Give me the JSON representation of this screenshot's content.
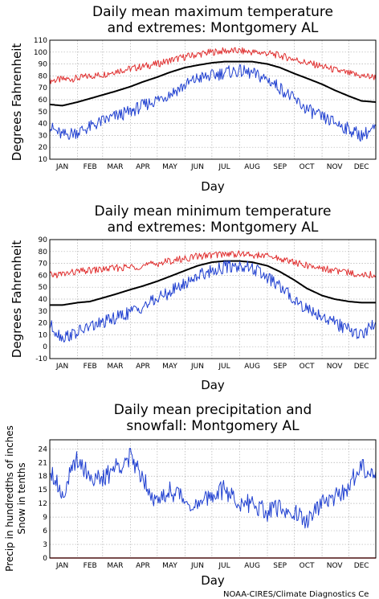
{
  "credit": "NOAA-CIRES/Climate Diagnostics Ce",
  "colors": {
    "extreme_high": "#e03030",
    "mean": "#000000",
    "extreme_low": "#2040d0",
    "precip": "#2040d0",
    "snow": "#e03030"
  },
  "chart_data": [
    {
      "type": "line",
      "title_lines": [
        "Daily mean maximum temperature",
        "and extremes: Montgomery AL"
      ],
      "xlabel": "Day",
      "ylabel": "Degrees Fahrenheit",
      "ylim": [
        10,
        110
      ],
      "yticks": [
        10,
        20,
        30,
        40,
        50,
        60,
        70,
        80,
        90,
        100,
        110
      ],
      "x_ticks": [
        "JAN",
        "FEB",
        "MAR",
        "APR",
        "MAY",
        "JUN",
        "JUL",
        "AUG",
        "SEP",
        "OCT",
        "NOV",
        "DEC"
      ],
      "grid": true,
      "legend": "none",
      "x": [
        "Jan 1",
        "Jan 15",
        "Feb 1",
        "Feb 15",
        "Mar 1",
        "Mar 15",
        "Apr 1",
        "Apr 15",
        "May 1",
        "May 15",
        "Jun 1",
        "Jun 15",
        "Jul 1",
        "Jul 15",
        "Aug 1",
        "Aug 15",
        "Sep 1",
        "Sep 15",
        "Oct 1",
        "Oct 15",
        "Nov 1",
        "Nov 15",
        "Dec 1",
        "Dec 15",
        "Dec 31"
      ],
      "series": [
        {
          "values": [
            76,
            77,
            78,
            80,
            81,
            84,
            86,
            88,
            90,
            93,
            96,
            98,
            100,
            101,
            101,
            100,
            99,
            97,
            94,
            91,
            88,
            85,
            82,
            80,
            79
          ]
        },
        {
          "values": [
            56,
            55,
            58,
            61,
            64,
            67,
            71,
            75,
            79,
            83,
            87,
            89,
            91,
            92,
            92,
            92,
            90,
            87,
            82,
            78,
            73,
            68,
            63,
            59,
            58
          ]
        },
        {
          "values": [
            37,
            30,
            33,
            37,
            42,
            46,
            50,
            55,
            60,
            65,
            72,
            78,
            80,
            83,
            84,
            82,
            77,
            70,
            60,
            52,
            45,
            41,
            35,
            30,
            36
          ]
        }
      ]
    },
    {
      "type": "line",
      "title_lines": [
        "Daily mean minimum temperature",
        "and extremes: Montgomery AL"
      ],
      "xlabel": "Day",
      "ylabel": "Degrees Fahrenheit",
      "ylim": [
        -10,
        90
      ],
      "yticks": [
        -10,
        0,
        10,
        20,
        30,
        40,
        50,
        60,
        70,
        80,
        90
      ],
      "x_ticks": [
        "JAN",
        "FEB",
        "MAR",
        "APR",
        "MAY",
        "JUN",
        "JUL",
        "AUG",
        "SEP",
        "OCT",
        "NOV",
        "DEC"
      ],
      "grid": true,
      "legend": "none",
      "x": [
        "Jan 1",
        "Jan 15",
        "Feb 1",
        "Feb 15",
        "Mar 1",
        "Mar 15",
        "Apr 1",
        "Apr 15",
        "May 1",
        "May 15",
        "Jun 1",
        "Jun 15",
        "Jul 1",
        "Jul 15",
        "Aug 1",
        "Aug 15",
        "Sep 1",
        "Sep 15",
        "Oct 1",
        "Oct 15",
        "Nov 1",
        "Nov 15",
        "Dec 1",
        "Dec 15",
        "Dec 31"
      ],
      "series": [
        {
          "values": [
            60,
            61,
            63,
            64,
            65,
            66,
            67,
            68,
            70,
            72,
            74,
            76,
            77,
            78,
            78,
            77,
            76,
            74,
            71,
            68,
            66,
            64,
            62,
            61,
            60
          ]
        },
        {
          "values": [
            35,
            35,
            37,
            38,
            41,
            44,
            48,
            51,
            55,
            59,
            64,
            68,
            71,
            72,
            72,
            71,
            68,
            63,
            56,
            49,
            43,
            40,
            38,
            37,
            37
          ]
        },
        {
          "values": [
            18,
            8,
            12,
            17,
            20,
            24,
            29,
            34,
            40,
            46,
            53,
            60,
            64,
            67,
            68,
            66,
            58,
            50,
            40,
            32,
            26,
            20,
            14,
            10,
            20
          ]
        }
      ]
    },
    {
      "type": "line",
      "title_lines": [
        "Daily mean precipitation and",
        "snowfall: Montgomery AL"
      ],
      "xlabel": "Day",
      "ylabel_lines": [
        "Precip in hundredths of inches",
        "Snow in tenths"
      ],
      "ylim": [
        0,
        26
      ],
      "yticks": [
        0,
        3,
        6,
        9,
        12,
        15,
        18,
        21,
        24
      ],
      "x_ticks": [
        "JAN",
        "FEB",
        "MAR",
        "APR",
        "MAY",
        "JUN",
        "JUL",
        "AUG",
        "SEP",
        "OCT",
        "NOV",
        "DEC"
      ],
      "grid": true,
      "legend": "none",
      "x": [
        "Jan 1",
        "Jan 15",
        "Feb 1",
        "Feb 15",
        "Mar 1",
        "Mar 15",
        "Apr 1",
        "Apr 15",
        "May 1",
        "May 15",
        "Jun 1",
        "Jun 15",
        "Jul 1",
        "Jul 15",
        "Aug 1",
        "Aug 15",
        "Sep 1",
        "Sep 15",
        "Oct 1",
        "Oct 15",
        "Nov 1",
        "Nov 15",
        "Dec 1",
        "Dec 15",
        "Dec 31"
      ],
      "series": [
        {
          "values": [
            20,
            14,
            22,
            18,
            17,
            20,
            22,
            18,
            12,
            15,
            13,
            11,
            14,
            15,
            12,
            12,
            10,
            11,
            10,
            8,
            12,
            13,
            16,
            20,
            19
          ]
        },
        {
          "values": [
            0,
            0,
            0,
            0,
            0,
            0,
            0,
            0,
            0,
            0,
            0,
            0,
            0,
            0,
            0,
            0,
            0,
            0,
            0,
            0,
            0,
            0,
            0,
            0,
            0
          ]
        }
      ]
    }
  ]
}
